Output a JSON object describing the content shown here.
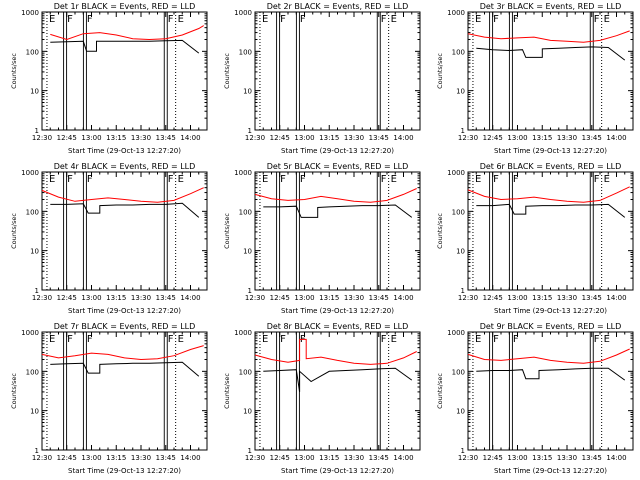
{
  "page": {
    "background": "#ffffff",
    "axis_color": "#000000"
  },
  "chart_data": [
    {
      "type": "line",
      "title": "Det 1r BLACK = Events, RED = LLD",
      "xlabel": "Start Time (29-Oct-13 12:27:20)",
      "ylabel": "Counts/sec",
      "x_ticks": [
        "12:30",
        "12:45",
        "13:00",
        "13:15",
        "13:30",
        "13:45",
        "14:00"
      ],
      "y_ticks": [
        "1",
        "10",
        "100",
        "1000"
      ],
      "xlim": [
        "12:30",
        "14:10"
      ],
      "ylim": [
        1,
        1000
      ],
      "y_scale": "log",
      "markers": [
        {
          "label": "E",
          "time": "12:33"
        },
        {
          "label": "F",
          "time": "12:44"
        },
        {
          "label": "F",
          "time": "12:56"
        },
        {
          "label": "F",
          "time": "13:45"
        },
        {
          "label": "E",
          "time": "13:51"
        }
      ],
      "series": [
        {
          "color": "#ff0000",
          "x": [
            "12:35",
            "12:45",
            "12:55",
            "13:05",
            "13:15",
            "13:25",
            "13:35",
            "13:45",
            "13:55",
            "14:05",
            "14:08"
          ],
          "y": [
            270,
            200,
            280,
            300,
            260,
            210,
            200,
            210,
            260,
            380,
            450
          ]
        },
        {
          "color": "#000000",
          "x": [
            "12:35",
            "12:45",
            "12:55",
            "12:57",
            "13:03",
            "13:03",
            "13:18",
            "13:25",
            "13:35",
            "13:45",
            "13:55",
            "14:05"
          ],
          "y": [
            170,
            175,
            180,
            100,
            100,
            180,
            180,
            180,
            180,
            185,
            190,
            90
          ]
        }
      ]
    },
    {
      "type": "line",
      "title": "Det 2r BLACK = Events, RED = LLD",
      "xlabel": "Start Time (29-Oct-13 12:27:20)",
      "ylabel": "Counts/sec",
      "x_ticks": [
        "12:30",
        "12:45",
        "13:00",
        "13:15",
        "13:30",
        "13:45",
        "14:00"
      ],
      "y_ticks": [
        "1",
        "10",
        "100",
        "1000"
      ],
      "xlim": [
        "12:30",
        "14:10"
      ],
      "ylim": [
        1,
        1000
      ],
      "y_scale": "log",
      "markers": [
        {
          "label": "E",
          "time": "12:33"
        },
        {
          "label": "F",
          "time": "12:44"
        },
        {
          "label": "F",
          "time": "12:56"
        },
        {
          "label": "F",
          "time": "13:45"
        },
        {
          "label": "E",
          "time": "13:51"
        }
      ],
      "series": []
    },
    {
      "type": "line",
      "title": "Det 3r BLACK = Events, RED = LLD",
      "xlabel": "Start Time (29-Oct-13 12:27:20)",
      "ylabel": "Counts/sec",
      "x_ticks": [
        "12:30",
        "12:45",
        "13:00",
        "13:15",
        "13:30",
        "13:45",
        "14:00"
      ],
      "y_ticks": [
        "1",
        "10",
        "100",
        "1000"
      ],
      "xlim": [
        "12:30",
        "14:10"
      ],
      "ylim": [
        1,
        1000
      ],
      "y_scale": "log",
      "markers": [
        {
          "label": "E",
          "time": "12:33"
        },
        {
          "label": "F",
          "time": "12:44"
        },
        {
          "label": "F",
          "time": "12:56"
        },
        {
          "label": "F",
          "time": "13:45"
        },
        {
          "label": "E",
          "time": "13:51"
        }
      ],
      "series": [
        {
          "color": "#ff0000",
          "x": [
            "12:30",
            "12:40",
            "12:50",
            "13:00",
            "13:10",
            "13:20",
            "13:30",
            "13:40",
            "13:50",
            "14:00",
            "14:08"
          ],
          "y": [
            280,
            230,
            210,
            220,
            230,
            190,
            180,
            170,
            190,
            250,
            330
          ]
        },
        {
          "color": "#000000",
          "x": [
            "12:35",
            "12:45",
            "12:55",
            "13:03",
            "13:05",
            "13:15",
            "13:15",
            "13:25",
            "13:35",
            "13:45",
            "13:55",
            "14:05"
          ],
          "y": [
            120,
            110,
            105,
            110,
            70,
            70,
            115,
            120,
            125,
            130,
            125,
            60
          ]
        }
      ]
    },
    {
      "type": "line",
      "title": "Det 4r BLACK = Events, RED = LLD",
      "xlabel": "Start Time (29-Oct-13 12:27:20)",
      "ylabel": "Counts/sec",
      "x_ticks": [
        "12:30",
        "12:45",
        "13:00",
        "13:15",
        "13:30",
        "13:45",
        "14:00"
      ],
      "y_ticks": [
        "1",
        "10",
        "100",
        "1000"
      ],
      "xlim": [
        "12:30",
        "14:10"
      ],
      "ylim": [
        1,
        1000
      ],
      "y_scale": "log",
      "markers": [
        {
          "label": "E",
          "time": "12:33"
        },
        {
          "label": "F",
          "time": "12:44"
        },
        {
          "label": "F",
          "time": "12:56"
        },
        {
          "label": "F",
          "time": "13:45"
        },
        {
          "label": "E",
          "time": "13:51"
        }
      ],
      "series": [
        {
          "color": "#ff0000",
          "x": [
            "12:30",
            "12:40",
            "12:50",
            "13:00",
            "13:10",
            "13:20",
            "13:30",
            "13:40",
            "13:50",
            "14:00",
            "14:08"
          ],
          "y": [
            340,
            230,
            180,
            200,
            220,
            200,
            180,
            170,
            190,
            280,
            400
          ]
        },
        {
          "color": "#000000",
          "x": [
            "12:35",
            "12:45",
            "12:55",
            "12:58",
            "13:05",
            "13:05",
            "13:15",
            "13:25",
            "13:35",
            "13:45",
            "13:55",
            "14:05"
          ],
          "y": [
            150,
            150,
            155,
            90,
            90,
            140,
            145,
            145,
            150,
            150,
            160,
            70
          ]
        }
      ]
    },
    {
      "type": "line",
      "title": "Det 5r BLACK = Events, RED = LLD",
      "xlabel": "Start Time (29-Oct-13 12:27:20)",
      "ylabel": "Counts/sec",
      "x_ticks": [
        "12:30",
        "12:45",
        "13:00",
        "13:15",
        "13:30",
        "13:45",
        "14:00"
      ],
      "y_ticks": [
        "1",
        "10",
        "100",
        "1000"
      ],
      "xlim": [
        "12:30",
        "14:10"
      ],
      "ylim": [
        1,
        1000
      ],
      "y_scale": "log",
      "markers": [
        {
          "label": "E",
          "time": "12:33"
        },
        {
          "label": "F",
          "time": "12:44"
        },
        {
          "label": "F",
          "time": "12:56"
        },
        {
          "label": "F",
          "time": "13:45"
        },
        {
          "label": "E",
          "time": "13:51"
        }
      ],
      "series": [
        {
          "color": "#ff0000",
          "x": [
            "12:30",
            "12:40",
            "12:50",
            "13:00",
            "13:10",
            "13:20",
            "13:30",
            "13:40",
            "13:50",
            "14:00",
            "14:08"
          ],
          "y": [
            270,
            210,
            190,
            200,
            240,
            210,
            180,
            170,
            190,
            270,
            380
          ]
        },
        {
          "color": "#000000",
          "x": [
            "12:35",
            "12:45",
            "12:55",
            "12:58",
            "13:08",
            "13:08",
            "13:15",
            "13:25",
            "13:35",
            "13:45",
            "13:55",
            "14:05"
          ],
          "y": [
            130,
            130,
            135,
            70,
            70,
            125,
            130,
            135,
            140,
            140,
            145,
            70
          ]
        }
      ]
    },
    {
      "type": "line",
      "title": "Det 6r BLACK = Events, RED = LLD",
      "xlabel": "Start Time (29-Oct-13 12:27:20)",
      "ylabel": "Counts/sec",
      "x_ticks": [
        "12:30",
        "12:45",
        "13:00",
        "13:15",
        "13:30",
        "13:45",
        "14:00"
      ],
      "y_ticks": [
        "1",
        "10",
        "100",
        "1000"
      ],
      "xlim": [
        "12:30",
        "14:10"
      ],
      "ylim": [
        1,
        1000
      ],
      "y_scale": "log",
      "markers": [
        {
          "label": "E",
          "time": "12:33"
        },
        {
          "label": "F",
          "time": "12:44"
        },
        {
          "label": "F",
          "time": "12:56"
        },
        {
          "label": "F",
          "time": "13:45"
        },
        {
          "label": "E",
          "time": "13:51"
        }
      ],
      "series": [
        {
          "color": "#ff0000",
          "x": [
            "12:30",
            "12:40",
            "12:50",
            "13:00",
            "13:10",
            "13:20",
            "13:30",
            "13:40",
            "13:50",
            "14:00",
            "14:08"
          ],
          "y": [
            350,
            240,
            200,
            210,
            230,
            200,
            180,
            170,
            190,
            290,
            420
          ]
        },
        {
          "color": "#000000",
          "x": [
            "12:35",
            "12:45",
            "12:55",
            "12:58",
            "13:05",
            "13:05",
            "13:15",
            "13:25",
            "13:35",
            "13:45",
            "13:55",
            "14:05"
          ],
          "y": [
            140,
            140,
            150,
            85,
            85,
            135,
            140,
            140,
            145,
            145,
            150,
            70
          ]
        }
      ]
    },
    {
      "type": "line",
      "title": "Det 7r BLACK = Events, RED = LLD",
      "xlabel": "Start Time (29-Oct-13 12:27:20)",
      "ylabel": "Counts/sec",
      "x_ticks": [
        "12:30",
        "12:45",
        "13:00",
        "13:15",
        "13:30",
        "13:45",
        "14:00"
      ],
      "y_ticks": [
        "1",
        "10",
        "100",
        "1000"
      ],
      "xlim": [
        "12:30",
        "14:10"
      ],
      "ylim": [
        1,
        1000
      ],
      "y_scale": "log",
      "markers": [
        {
          "label": "E",
          "time": "12:33"
        },
        {
          "label": "F",
          "time": "12:44"
        },
        {
          "label": "F",
          "time": "12:56"
        },
        {
          "label": "F",
          "time": "13:45"
        },
        {
          "label": "E",
          "time": "13:51"
        }
      ],
      "series": [
        {
          "color": "#ff0000",
          "x": [
            "12:30",
            "12:40",
            "12:50",
            "13:00",
            "13:10",
            "13:20",
            "13:30",
            "13:40",
            "13:50",
            "14:00",
            "14:08"
          ],
          "y": [
            270,
            220,
            250,
            290,
            270,
            220,
            200,
            210,
            250,
            360,
            450
          ]
        },
        {
          "color": "#000000",
          "x": [
            "12:35",
            "12:45",
            "12:55",
            "12:58",
            "13:05",
            "13:05",
            "13:15",
            "13:25",
            "13:35",
            "13:45",
            "13:55",
            "14:05"
          ],
          "y": [
            150,
            155,
            160,
            90,
            90,
            150,
            155,
            160,
            160,
            165,
            170,
            75
          ]
        }
      ]
    },
    {
      "type": "line",
      "title": "Det 8r BLACK = Events, RED = LLD",
      "xlabel": "Start Time (29-Oct-13 12:27:20)",
      "ylabel": "Counts/sec",
      "x_ticks": [
        "12:30",
        "12:45",
        "13:00",
        "13:15",
        "13:30",
        "13:45",
        "14:00"
      ],
      "y_ticks": [
        "1",
        "10",
        "100",
        "1000"
      ],
      "xlim": [
        "12:30",
        "14:10"
      ],
      "ylim": [
        1,
        1000
      ],
      "y_scale": "log",
      "markers": [
        {
          "label": "E",
          "time": "12:33"
        },
        {
          "label": "F",
          "time": "12:44"
        },
        {
          "label": "F",
          "time": "12:56"
        },
        {
          "label": "F",
          "time": "13:45"
        },
        {
          "label": "E",
          "time": "13:51"
        }
      ],
      "series": [
        {
          "color": "#ff0000",
          "x": [
            "12:30",
            "12:40",
            "12:50",
            "12:57",
            "12:57",
            "13:01",
            "13:01",
            "13:10",
            "13:20",
            "13:30",
            "13:40",
            "13:50",
            "14:00",
            "14:08"
          ],
          "y": [
            260,
            200,
            170,
            190,
            650,
            650,
            210,
            230,
            190,
            160,
            150,
            160,
            220,
            320
          ]
        },
        {
          "color": "#000000",
          "x": [
            "12:35",
            "12:45",
            "12:55",
            "12:57",
            "12:57",
            "13:04",
            "13:04",
            "13:15",
            "13:25",
            "13:35",
            "13:45",
            "13:55",
            "14:05"
          ],
          "y": [
            100,
            105,
            110,
            30,
            100,
            55,
            55,
            100,
            105,
            110,
            115,
            120,
            60
          ]
        }
      ]
    },
    {
      "type": "line",
      "title": "Det 9r BLACK = Events, RED = LLD",
      "xlabel": "Start Time (29-Oct-13 12:27:20)",
      "ylabel": "Counts/sec",
      "x_ticks": [
        "12:30",
        "12:45",
        "13:00",
        "13:15",
        "13:30",
        "13:45",
        "14:00"
      ],
      "y_ticks": [
        "1",
        "10",
        "100",
        "1000"
      ],
      "xlim": [
        "12:30",
        "14:10"
      ],
      "ylim": [
        1,
        1000
      ],
      "y_scale": "log",
      "markers": [
        {
          "label": "E",
          "time": "12:33"
        },
        {
          "label": "F",
          "time": "12:44"
        },
        {
          "label": "F",
          "time": "12:56"
        },
        {
          "label": "F",
          "time": "13:45"
        },
        {
          "label": "E",
          "time": "13:51"
        }
      ],
      "series": [
        {
          "color": "#ff0000",
          "x": [
            "12:30",
            "12:40",
            "12:50",
            "13:00",
            "13:10",
            "13:20",
            "13:30",
            "13:40",
            "13:50",
            "14:00",
            "14:08"
          ],
          "y": [
            270,
            200,
            190,
            210,
            230,
            190,
            170,
            160,
            180,
            260,
            370
          ]
        },
        {
          "color": "#000000",
          "x": [
            "12:35",
            "12:45",
            "12:55",
            "13:03",
            "13:05",
            "13:13",
            "13:13",
            "13:25",
            "13:35",
            "13:45",
            "13:55",
            "14:05"
          ],
          "y": [
            100,
            105,
            105,
            110,
            65,
            65,
            105,
            110,
            115,
            120,
            120,
            60
          ]
        }
      ]
    }
  ]
}
